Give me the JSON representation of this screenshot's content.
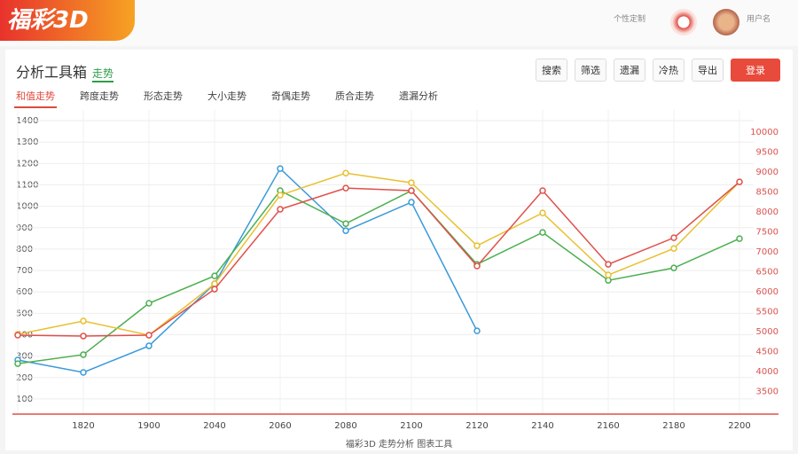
{
  "header": {
    "logo": "福彩3D",
    "custom": "个性定制",
    "user": "用户名"
  },
  "toolbar": {
    "title": "分析工具箱",
    "tag": "走势",
    "buttons": [
      "搜索",
      "筛选",
      "遗漏",
      "冷热",
      "导出"
    ],
    "primary": "登录"
  },
  "tabs": [
    "和值走势",
    "跨度走势",
    "形态走势",
    "大小走势",
    "奇偶走势",
    "质合走势",
    "遗漏分析"
  ],
  "footer": "福彩3D 走势分析 图表工具",
  "chart_data": {
    "type": "line",
    "categories": [
      null,
      "1820",
      "1900",
      "2040",
      "2060",
      "2080",
      "2100",
      "2120",
      "2140",
      "2160",
      "2180",
      "2200"
    ],
    "ylim": [
      50,
      1450
    ],
    "yticks": [
      100,
      200,
      300,
      400,
      500,
      600,
      700,
      800,
      900,
      1000,
      1100,
      1200,
      1300,
      1400
    ],
    "y2lim": [
      3050,
      10550
    ],
    "y2ticks": [
      3500,
      4000,
      4500,
      5000,
      5500,
      6000,
      6500,
      7000,
      7500,
      8000,
      8500,
      9000,
      9500,
      10000
    ],
    "grid": true,
    "series": [
      {
        "color": "#3a9ad9",
        "values": [
          282,
          224,
          348,
          638,
          1176,
          886,
          1019,
          418,
          null,
          null,
          null,
          null
        ]
      },
      {
        "color": "#4caf50",
        "values": [
          265,
          307,
          547,
          675,
          1073,
          919,
          1073,
          729,
          878,
          654,
          712,
          849
        ]
      },
      {
        "color": "#e8c030",
        "values": [
          402,
          464,
          398,
          638,
          1052,
          1155,
          1110,
          816,
          969,
          679,
          803,
          1114
        ]
      },
      {
        "color": "#e0504a",
        "values": [
          398,
          394,
          398,
          613,
          986,
          1085,
          1073,
          721,
          1073,
          729,
          853,
          1114
        ]
      }
    ]
  }
}
